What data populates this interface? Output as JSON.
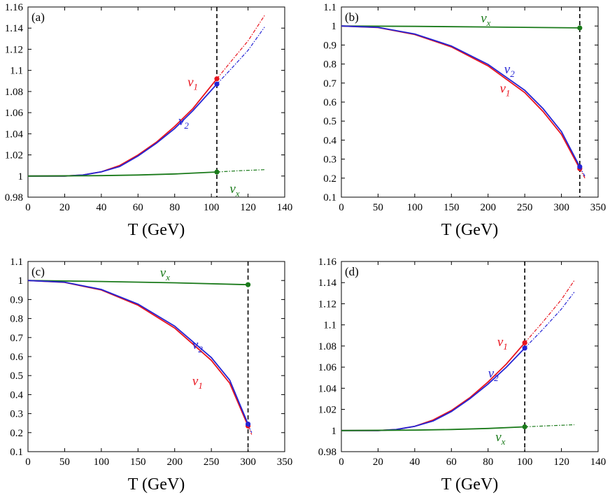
{
  "chart_data": [
    {
      "panel": "(a)",
      "type": "line",
      "xlabel": "T (GeV)",
      "xlim": [
        0,
        140
      ],
      "xticks": [
        0,
        20,
        40,
        60,
        80,
        100,
        120,
        140
      ],
      "ylim": [
        0.98,
        1.16
      ],
      "yticks": [
        0.98,
        1,
        1.02,
        1.04,
        1.06,
        1.08,
        1.1,
        1.12,
        1.14,
        1.16
      ],
      "vline": 103,
      "series": [
        {
          "name": "v1",
          "sub": "1",
          "color": "#e8141e",
          "solid": [
            [
              0,
              1.0
            ],
            [
              20,
              1.0
            ],
            [
              30,
              1.001
            ],
            [
              40,
              1.004
            ],
            [
              50,
              1.01
            ],
            [
              60,
              1.02
            ],
            [
              70,
              1.032
            ],
            [
              80,
              1.047
            ],
            [
              90,
              1.064
            ],
            [
              103,
              1.092
            ]
          ],
          "dashed": [
            [
              103,
              1.092
            ],
            [
              110,
              1.107
            ],
            [
              120,
              1.128
            ],
            [
              129,
              1.152
            ]
          ],
          "marker": [
            103,
            1.092
          ],
          "label_at": [
            87,
            1.085
          ],
          "label_dir": "left"
        },
        {
          "name": "v2",
          "sub": "2",
          "color": "#2424d4",
          "solid": [
            [
              0,
              1.0
            ],
            [
              20,
              1.0
            ],
            [
              30,
              1.001
            ],
            [
              40,
              1.004
            ],
            [
              50,
              1.009
            ],
            [
              60,
              1.019
            ],
            [
              70,
              1.031
            ],
            [
              80,
              1.045
            ],
            [
              90,
              1.062
            ],
            [
              103,
              1.087
            ]
          ],
          "dashed": [
            [
              103,
              1.087
            ],
            [
              110,
              1.1
            ],
            [
              120,
              1.119
            ],
            [
              129,
              1.141
            ]
          ],
          "marker": [
            103,
            1.087
          ],
          "label_at": [
            82,
            1.048
          ],
          "label_dir": "left"
        },
        {
          "name": "vx",
          "sub": "x",
          "color": "#1a7a1a",
          "solid": [
            [
              0,
              1.0
            ],
            [
              40,
              1.0004
            ],
            [
              60,
              1.001
            ],
            [
              80,
              1.002
            ],
            [
              103,
              1.0038
            ]
          ],
          "dashed": [
            [
              103,
              1.0038
            ],
            [
              115,
              1.005
            ],
            [
              129,
              1.006
            ]
          ],
          "marker": [
            103,
            1.0038
          ],
          "label_at": [
            110,
            0.984
          ],
          "label_dir": "left"
        }
      ]
    },
    {
      "panel": "(b)",
      "type": "line",
      "xlabel": "T (GeV)",
      "xlim": [
        0,
        350
      ],
      "xticks": [
        0,
        50,
        100,
        150,
        200,
        250,
        300,
        350
      ],
      "ylim": [
        0.1,
        1.1
      ],
      "yticks": [
        0.1,
        0.2,
        0.3,
        0.4,
        0.5,
        0.6,
        0.7,
        0.8,
        0.9,
        1,
        1.1
      ],
      "vline": 325,
      "series": [
        {
          "name": "vx",
          "sub": "x",
          "color": "#1a7a1a",
          "solid": [
            [
              0,
              1.0
            ],
            [
              100,
              0.998
            ],
            [
              200,
              0.995
            ],
            [
              325,
              0.99
            ]
          ],
          "dashed": [],
          "marker": [
            325,
            0.99
          ],
          "label_at": [
            190,
            1.02
          ],
          "label_dir": "right"
        },
        {
          "name": "v1",
          "sub": "1",
          "color": "#e8141e",
          "solid": [
            [
              0,
              1.0
            ],
            [
              50,
              0.992
            ],
            [
              100,
              0.955
            ],
            [
              150,
              0.89
            ],
            [
              200,
              0.79
            ],
            [
              250,
              0.65
            ],
            [
              275,
              0.55
            ],
            [
              300,
              0.43
            ],
            [
              325,
              0.25
            ]
          ],
          "dashed": [
            [
              325,
              0.25
            ],
            [
              332,
              0.2
            ]
          ],
          "marker": [
            325,
            0.25
          ],
          "label_at": [
            216,
            0.65
          ],
          "label_dir": "left"
        },
        {
          "name": "v2",
          "sub": "2",
          "color": "#2424d4",
          "solid": [
            [
              0,
              1.0
            ],
            [
              50,
              0.993
            ],
            [
              100,
              0.958
            ],
            [
              150,
              0.895
            ],
            [
              200,
              0.798
            ],
            [
              250,
              0.662
            ],
            [
              275,
              0.565
            ],
            [
              300,
              0.445
            ],
            [
              325,
              0.26
            ]
          ],
          "dashed": [
            [
              325,
              0.26
            ],
            [
              332,
              0.21
            ]
          ],
          "marker": [
            325,
            0.26
          ],
          "label_at": [
            222,
            0.75
          ],
          "label_dir": "left"
        }
      ]
    },
    {
      "panel": "(c)",
      "type": "line",
      "xlabel": "T (GeV)",
      "xlim": [
        0,
        350
      ],
      "xticks": [
        0,
        50,
        100,
        150,
        200,
        250,
        300,
        350
      ],
      "ylim": [
        0.1,
        1.1
      ],
      "yticks": [
        0.1,
        0.2,
        0.3,
        0.4,
        0.5,
        0.6,
        0.7,
        0.8,
        0.9,
        1,
        1.1
      ],
      "vline": 300,
      "series": [
        {
          "name": "vx",
          "sub": "x",
          "color": "#1a7a1a",
          "solid": [
            [
              0,
              1.0
            ],
            [
              100,
              0.995
            ],
            [
              200,
              0.988
            ],
            [
              300,
              0.978
            ]
          ],
          "dashed": [],
          "marker": [
            300,
            0.978
          ],
          "label_at": [
            180,
            1.02
          ],
          "label_dir": "right"
        },
        {
          "name": "v1",
          "sub": "1",
          "color": "#e8141e",
          "solid": [
            [
              0,
              1.0
            ],
            [
              50,
              0.99
            ],
            [
              100,
              0.95
            ],
            [
              150,
              0.87
            ],
            [
              200,
              0.75
            ],
            [
              250,
              0.58
            ],
            [
              275,
              0.46
            ],
            [
              300,
              0.235
            ]
          ],
          "dashed": [
            [
              300,
              0.235
            ],
            [
              305,
              0.19
            ]
          ],
          "marker": [
            300,
            0.235
          ],
          "label_at": [
            224,
            0.45
          ],
          "label_dir": "left"
        },
        {
          "name": "v2",
          "sub": "2",
          "color": "#2424d4",
          "solid": [
            [
              0,
              1.0
            ],
            [
              50,
              0.991
            ],
            [
              100,
              0.953
            ],
            [
              150,
              0.876
            ],
            [
              200,
              0.76
            ],
            [
              250,
              0.595
            ],
            [
              275,
              0.476
            ],
            [
              300,
              0.245
            ]
          ],
          "dashed": [
            [
              300,
              0.245
            ],
            [
              305,
              0.2
            ]
          ],
          "marker": [
            300,
            0.245
          ],
          "label_at": [
            224,
            0.64
          ],
          "label_dir": "left"
        }
      ]
    },
    {
      "panel": "(d)",
      "type": "line",
      "xlabel": "T (GeV)",
      "xlim": [
        0,
        140
      ],
      "xticks": [
        0,
        20,
        40,
        60,
        80,
        100,
        120,
        140
      ],
      "ylim": [
        0.98,
        1.16
      ],
      "yticks": [
        0.98,
        1,
        1.02,
        1.04,
        1.06,
        1.08,
        1.1,
        1.12,
        1.14,
        1.16
      ],
      "vline": 100,
      "series": [
        {
          "name": "v1",
          "sub": "1",
          "color": "#e8141e",
          "solid": [
            [
              0,
              1.0
            ],
            [
              20,
              1.0
            ],
            [
              30,
              1.001
            ],
            [
              40,
              1.004
            ],
            [
              50,
              1.01
            ],
            [
              60,
              1.019
            ],
            [
              70,
              1.031
            ],
            [
              80,
              1.046
            ],
            [
              90,
              1.063
            ],
            [
              100,
              1.083
            ]
          ],
          "dashed": [
            [
              100,
              1.083
            ],
            [
              110,
              1.103
            ],
            [
              120,
              1.124
            ],
            [
              127,
              1.142
            ]
          ],
          "marker": [
            100,
            1.083
          ],
          "label_at": [
            85,
            1.08
          ],
          "label_dir": "left"
        },
        {
          "name": "v2",
          "sub": "2",
          "color": "#2424d4",
          "solid": [
            [
              0,
              1.0
            ],
            [
              20,
              1.0
            ],
            [
              30,
              1.001
            ],
            [
              40,
              1.004
            ],
            [
              50,
              1.009
            ],
            [
              60,
              1.018
            ],
            [
              70,
              1.03
            ],
            [
              80,
              1.044
            ],
            [
              90,
              1.06
            ],
            [
              100,
              1.078
            ]
          ],
          "dashed": [
            [
              100,
              1.078
            ],
            [
              110,
              1.096
            ],
            [
              120,
              1.115
            ],
            [
              127,
              1.131
            ]
          ],
          "marker": [
            100,
            1.078
          ],
          "label_at": [
            80,
            1.05
          ],
          "label_dir": "left"
        },
        {
          "name": "vx",
          "sub": "x",
          "color": "#1a7a1a",
          "solid": [
            [
              0,
              1.0
            ],
            [
              40,
              1.0004
            ],
            [
              60,
              1.001
            ],
            [
              80,
              1.002
            ],
            [
              100,
              1.0035
            ]
          ],
          "dashed": [
            [
              100,
              1.0035
            ],
            [
              113,
              1.0045
            ],
            [
              127,
              1.0055
            ]
          ],
          "marker": [
            100,
            1.0035
          ],
          "label_at": [
            84,
            0.99
          ],
          "label_dir": "left"
        }
      ]
    }
  ]
}
